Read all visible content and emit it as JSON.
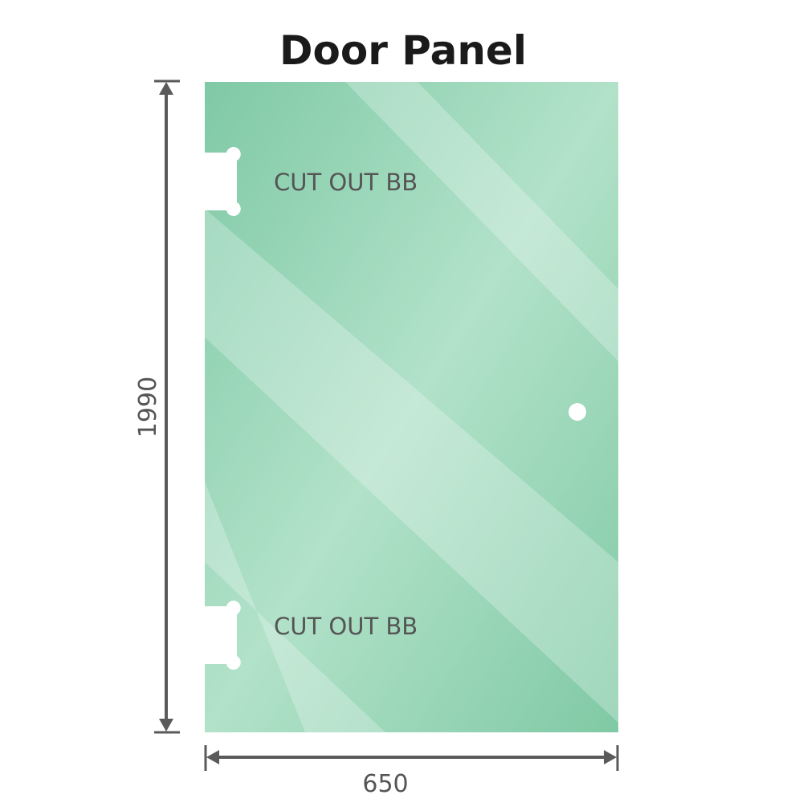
{
  "title": "Door Panel",
  "dimensions": {
    "height": "1990",
    "width": "650"
  },
  "cutouts": [
    {
      "label": "CUT OUT BB"
    },
    {
      "label": "CUT OUT BB"
    }
  ],
  "colors": {
    "glass": "#8fd0b0",
    "dimension_line": "#5a5a5a",
    "title": "#1a1a1a"
  }
}
